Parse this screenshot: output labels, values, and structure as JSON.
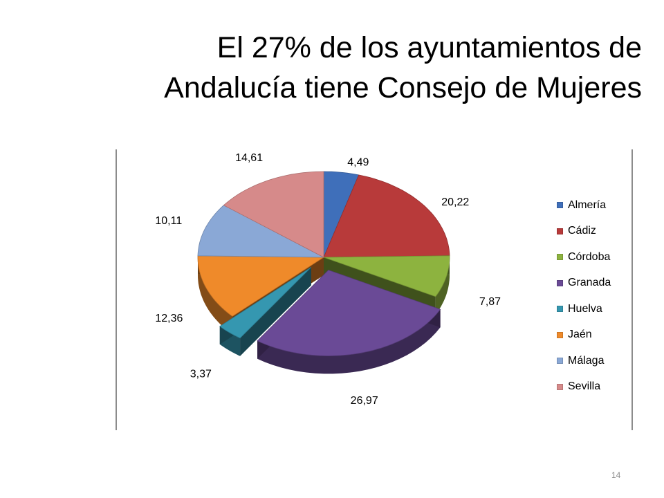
{
  "slide": {
    "title_line1": "El 27% de los ayuntamientos de",
    "title_line2": "Andalucía tiene Consejo de Mujeres",
    "page_number": "14"
  },
  "chart_data": {
    "type": "pie",
    "title": "",
    "legend_position": "right",
    "categories": [
      "Almería",
      "Cádiz",
      "Córdoba",
      "Granada",
      "Huelva",
      "Jaén",
      "Málaga",
      "Sevilla"
    ],
    "values": [
      4.49,
      20.22,
      7.87,
      26.97,
      3.37,
      12.36,
      10.11,
      14.61
    ],
    "value_labels": [
      "4,49",
      "20,22",
      "7,87",
      "26,97",
      "3,37",
      "12,36",
      "10,11",
      "14,61"
    ],
    "colors": [
      "#3f6fba",
      "#b83a3a",
      "#8db33f",
      "#6a4a96",
      "#3597b0",
      "#ef8a2a",
      "#8aa8d6",
      "#d68a8a"
    ],
    "exploded_slices": [
      "Granada",
      "Huelva"
    ],
    "style": "3d"
  }
}
